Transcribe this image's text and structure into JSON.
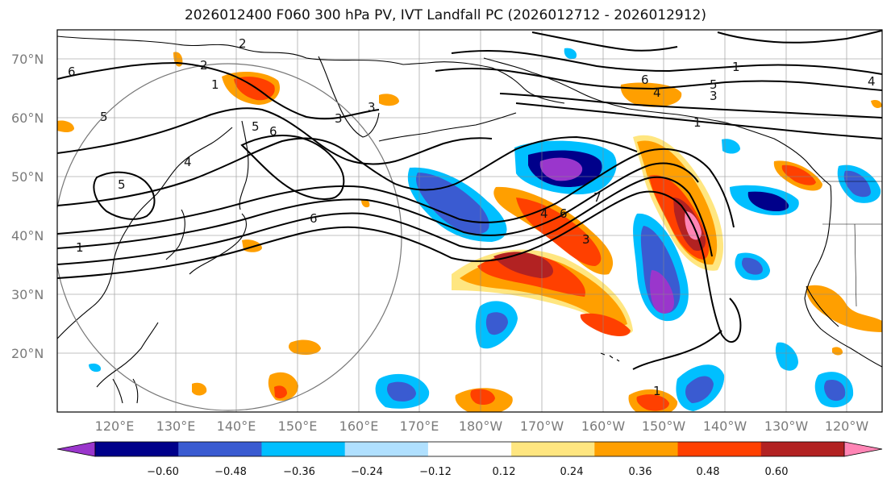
{
  "title": "2026012400 F060 300 hPa PV, IVT Landfall PC (2026012712 - 2026012912)",
  "lat_labels": [
    "70°N",
    "60°N",
    "50°N",
    "40°N",
    "30°N",
    "20°N"
  ],
  "lon_labels": [
    "120°E",
    "130°E",
    "140°E",
    "150°E",
    "160°E",
    "170°E",
    "180°W",
    "170°W",
    "160°W",
    "150°W",
    "140°W",
    "130°W",
    "120°W"
  ],
  "colorbar": {
    "ticks": [
      "−0.60",
      "−0.48",
      "−0.36",
      "−0.24",
      "−0.12",
      "0.12",
      "0.24",
      "0.36",
      "0.48",
      "0.60"
    ],
    "colors": [
      "#9a36cc",
      "#00008a",
      "#3a5bd1",
      "#00bfff",
      "#b0e0ff",
      "#ffffff",
      "#ffe680",
      "#ff9f00",
      "#ff4000",
      "#b22222",
      "#ff85b5"
    ]
  },
  "contour_labels": [
    "6",
    "2",
    "1",
    "5",
    "3",
    "5",
    "6",
    "4",
    "5",
    "3",
    "2",
    "6",
    "1",
    "6",
    "1",
    "4",
    "3",
    "6",
    "4",
    "5",
    "3",
    "1",
    "4",
    "1",
    "7"
  ],
  "map_extent": {
    "lon_min": 112,
    "lon_max": 247,
    "lat_min": 10,
    "lat_max": 75
  }
}
